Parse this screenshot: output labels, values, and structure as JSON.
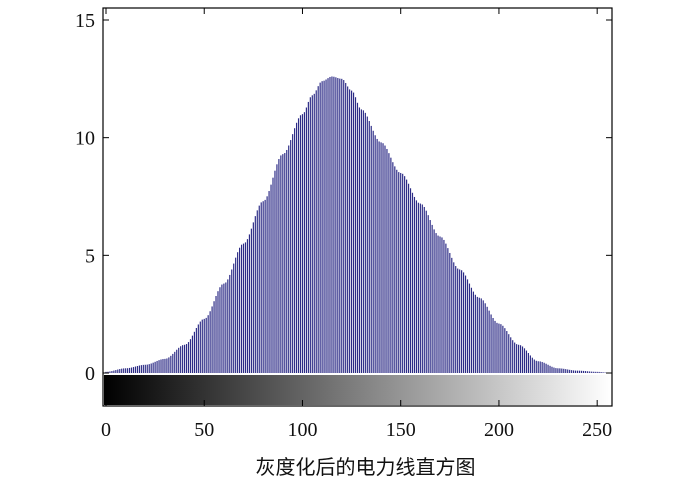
{
  "chart_data": {
    "type": "bar",
    "title": "",
    "xlabel": "灰度化后的电力线直方图",
    "ylabel": "",
    "xlim": [
      0,
      255
    ],
    "ylim": [
      -1.3,
      15.5
    ],
    "xticks": [
      0,
      50,
      100,
      150,
      200,
      250
    ],
    "yticks": [
      0,
      5,
      10,
      15
    ],
    "grid": false,
    "legend": "none",
    "bar_color": "#2c2b86",
    "colorbar": {
      "range": [
        0,
        255
      ],
      "from_color": "#000000",
      "to_color": "#ffffff"
    },
    "anchors": [
      {
        "x": 0,
        "y": 0.05
      },
      {
        "x": 10,
        "y": 0.2
      },
      {
        "x": 20,
        "y": 0.35
      },
      {
        "x": 30,
        "y": 0.6
      },
      {
        "x": 40,
        "y": 1.2
      },
      {
        "x": 50,
        "y": 2.3
      },
      {
        "x": 60,
        "y": 3.8
      },
      {
        "x": 70,
        "y": 5.5
      },
      {
        "x": 80,
        "y": 7.3
      },
      {
        "x": 90,
        "y": 9.3
      },
      {
        "x": 100,
        "y": 11.0
      },
      {
        "x": 105,
        "y": 11.8
      },
      {
        "x": 110,
        "y": 12.4
      },
      {
        "x": 115,
        "y": 12.6
      },
      {
        "x": 120,
        "y": 12.5
      },
      {
        "x": 125,
        "y": 12.0
      },
      {
        "x": 130,
        "y": 11.2
      },
      {
        "x": 140,
        "y": 9.8
      },
      {
        "x": 150,
        "y": 8.5
      },
      {
        "x": 160,
        "y": 7.2
      },
      {
        "x": 170,
        "y": 5.8
      },
      {
        "x": 180,
        "y": 4.4
      },
      {
        "x": 190,
        "y": 3.2
      },
      {
        "x": 200,
        "y": 2.1
      },
      {
        "x": 210,
        "y": 1.2
      },
      {
        "x": 220,
        "y": 0.5
      },
      {
        "x": 230,
        "y": 0.2
      },
      {
        "x": 240,
        "y": 0.1
      },
      {
        "x": 250,
        "y": 0.05
      },
      {
        "x": 255,
        "y": 0.02
      }
    ]
  }
}
